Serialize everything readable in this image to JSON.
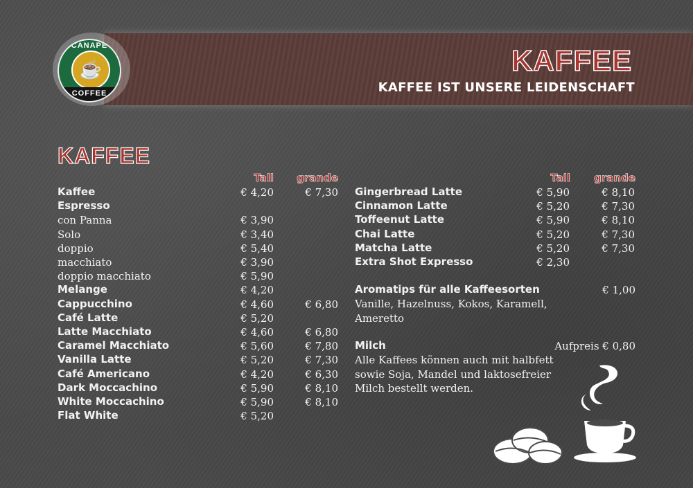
{
  "header": {
    "logo_top": "CANAPE",
    "logo_bottom": "COFFEE",
    "title": "KAFFEE",
    "subtitle": "KAFFEE IST UNSERE LEIDENSCHAFT"
  },
  "section_title": "KAFFEE",
  "columns": {
    "tall": "Tall",
    "grande": "grande"
  },
  "left_items": [
    {
      "name": "Kaffee",
      "bold": true,
      "tall": "€ 4,20",
      "grande": "€ 7,30"
    },
    {
      "name": "Espresso",
      "bold": true,
      "tall": "",
      "grande": ""
    },
    {
      "name": "con Panna",
      "bold": false,
      "tall": "€ 3,90",
      "grande": ""
    },
    {
      "name": "Solo",
      "bold": false,
      "tall": "€ 3,40",
      "grande": ""
    },
    {
      "name": "doppio",
      "bold": false,
      "tall": "€ 5,40",
      "grande": ""
    },
    {
      "name": "macchiato",
      "bold": false,
      "tall": "€ 3,90",
      "grande": ""
    },
    {
      "name": "doppio macchiato",
      "bold": false,
      "tall": "€ 5,90",
      "grande": ""
    },
    {
      "name": "Melange",
      "bold": true,
      "tall": "€ 4,20",
      "grande": ""
    },
    {
      "name": "Cappucchino",
      "bold": true,
      "tall": "€ 4,60",
      "grande": "€ 6,80"
    },
    {
      "name": "Café Latte",
      "bold": true,
      "tall": "€ 5,20",
      "grande": ""
    },
    {
      "name": "Latte Macchiato",
      "bold": true,
      "tall": "€ 4,60",
      "grande": "€ 6,80"
    },
    {
      "name": "Caramel Macchiato",
      "bold": true,
      "tall": "€ 5,60",
      "grande": "€ 7,80"
    },
    {
      "name": "Vanilla Latte",
      "bold": true,
      "tall": "€ 5,20",
      "grande": "€ 7,30"
    },
    {
      "name": "Café Americano",
      "bold": true,
      "tall": "€ 4,20",
      "grande": "€ 6,30"
    },
    {
      "name": "Dark Moccachino",
      "bold": true,
      "tall": "€ 5,90",
      "grande": "€ 8,10"
    },
    {
      "name": "White Moccachino",
      "bold": true,
      "tall": "€ 5,90",
      "grande": "€ 8,10"
    },
    {
      "name": "Flat White",
      "bold": true,
      "tall": "€ 5,20",
      "grande": ""
    }
  ],
  "right_items": [
    {
      "name": "Gingerbread Latte",
      "bold": true,
      "tall": "€ 5,90",
      "grande": "€ 8,10"
    },
    {
      "name": "Cinnamon Latte",
      "bold": true,
      "tall": "€ 5,20",
      "grande": "€ 7,30"
    },
    {
      "name": "Toffeenut Latte",
      "bold": true,
      "tall": "€ 5,90",
      "grande": "€ 8,10"
    },
    {
      "name": "Chai Latte",
      "bold": true,
      "tall": "€ 5,20",
      "grande": "€ 7,30"
    },
    {
      "name": "Matcha Latte",
      "bold": true,
      "tall": "€ 5,20",
      "grande": "€ 7,30"
    },
    {
      "name": "Extra Shot Expresso",
      "bold": true,
      "tall": "€ 2,30",
      "grande": ""
    }
  ],
  "aroma": {
    "title": "Aromatips für alle Kaffeesorten",
    "price": "€ 1,00",
    "description": "Vanille, Hazelnuss, Kokos, Karamell, Ameretto"
  },
  "milch": {
    "title": "Milch",
    "price": "Aufpreis € 0,80",
    "description": "Alle Kaffees können auch mit halbfett sowie Soja, Mandel und laktosefreier Milch bestellt werden."
  },
  "icons": [
    "coffee-beans-icon",
    "steaming-cup-icon"
  ],
  "colors": {
    "accent": "#a8352f",
    "band": "#5b3c38",
    "background": "#4a4a4a"
  }
}
